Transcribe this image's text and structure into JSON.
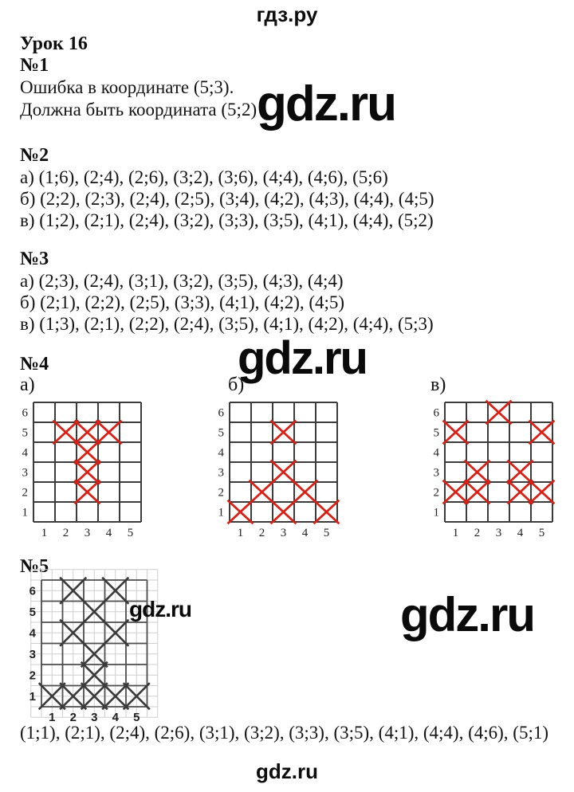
{
  "page": {
    "header_brand": "гдз.ру",
    "footer_brand": "gdz.ru",
    "watermark": "gdz.ru"
  },
  "colors": {
    "red_mark": "#dc1f14",
    "pencil_mark": "#3a3a3a",
    "grid_line": "#3c3c3c",
    "light_grid_line": "#cfcfcf",
    "text": "#141414"
  },
  "lesson": {
    "title": "Урок 16"
  },
  "task1": {
    "label": "№1",
    "line1": "Ошибка в координате (5;3).",
    "line2": "Должна быть координата (5;2)"
  },
  "task2": {
    "label": "№2",
    "lines": [
      {
        "prefix": "а)",
        "coords": "(1;6), (2;4), (2;6), (3;2), (3;6), (4;4), (4;6), (5;6)"
      },
      {
        "prefix": "б)",
        "coords": "(2;2), (2;3), (2;4), (2;5), (3;4), (4;2), (4;3), (4;4), (4;5)"
      },
      {
        "prefix": "в)",
        "coords": "(1;2), (2;1), (2;4), (3;2), (3;3), (3;5), (4;1), (4;4), (5;2)"
      }
    ]
  },
  "task3": {
    "label": "№3",
    "lines": [
      {
        "prefix": "а)",
        "coords": "(2;3), (2;4), (3;1), (3;2), (3;5), (4;3), (4;4)"
      },
      {
        "prefix": "б)",
        "coords": "(2;1), (2;2), (2;5), (3;3), (4;1), (4;2), (4;5)"
      },
      {
        "prefix": "в)",
        "coords": "(1;3), (2;1), (2;2), (2;4), (3;5), (4;1), (4;2), (4;4), (5;3)"
      }
    ]
  },
  "task4": {
    "label": "№4",
    "grids": [
      {
        "label": "а)",
        "cols": 5,
        "rows": 6,
        "col_labels": [
          "1",
          "2",
          "3",
          "4",
          "5"
        ],
        "row_labels": [
          "1",
          "2",
          "3",
          "4",
          "5",
          "6"
        ],
        "mark_color": "#dc1f14",
        "marks": [
          [
            2,
            5
          ],
          [
            3,
            5
          ],
          [
            4,
            5
          ],
          [
            3,
            4
          ],
          [
            3,
            3
          ],
          [
            3,
            2
          ]
        ]
      },
      {
        "label": "б)",
        "cols": 5,
        "rows": 6,
        "col_labels": [
          "1",
          "2",
          "3",
          "4",
          "5"
        ],
        "row_labels": [
          "1",
          "2",
          "3",
          "4",
          "5",
          "6"
        ],
        "mark_color": "#dc1f14",
        "marks": [
          [
            1,
            1
          ],
          [
            3,
            1
          ],
          [
            5,
            1
          ],
          [
            2,
            2
          ],
          [
            4,
            2
          ],
          [
            3,
            3
          ],
          [
            3,
            5
          ]
        ]
      },
      {
        "label": "в)",
        "cols": 5,
        "rows": 6,
        "col_labels": [
          "1",
          "2",
          "3",
          "4",
          "5"
        ],
        "row_labels": [
          "1",
          "2",
          "3",
          "4",
          "5",
          "6"
        ],
        "mark_color": "#dc1f14",
        "marks": [
          [
            1,
            2
          ],
          [
            2,
            2
          ],
          [
            4,
            2
          ],
          [
            5,
            2
          ],
          [
            2,
            3
          ],
          [
            4,
            3
          ],
          [
            1,
            5
          ],
          [
            5,
            5
          ],
          [
            3,
            6
          ]
        ]
      }
    ]
  },
  "task5": {
    "label": "№5",
    "grid": {
      "cols": 5,
      "rows": 6,
      "col_labels": [
        "1",
        "2",
        "3",
        "4",
        "5"
      ],
      "row_labels": [
        "1",
        "2",
        "3",
        "4",
        "5",
        "6"
      ],
      "mark_color": "#3a3a3a",
      "marks": [
        [
          1,
          1
        ],
        [
          2,
          1
        ],
        [
          3,
          1
        ],
        [
          4,
          1
        ],
        [
          5,
          1
        ],
        [
          3,
          2
        ],
        [
          3,
          3
        ],
        [
          2,
          4
        ],
        [
          4,
          4
        ],
        [
          3,
          5
        ],
        [
          2,
          6
        ],
        [
          4,
          6
        ]
      ]
    },
    "answer": "(1;1), (2;1), (2;4), (2;6), (3;1), (3;2), (3;3), (3;5), (4;1), (4;4), (4;6), (5;1)"
  }
}
